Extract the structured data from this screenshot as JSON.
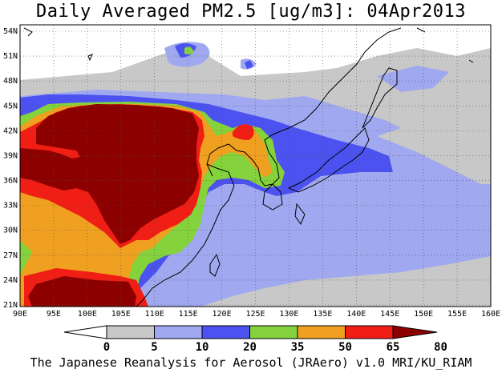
{
  "title": "Daily Averaged PM2.5 [ug/m3]: 04Apr2013",
  "footer": "The Japanese Reanalysis for Aerosol (JRAero) v1.0 MRI/KU_RIAM",
  "lat_labels": [
    "54N",
    "51N",
    "48N",
    "45N",
    "42N",
    "39N",
    "36N",
    "33N",
    "30N",
    "27N",
    "24N",
    "21N"
  ],
  "lon_labels": [
    "90E",
    "95E",
    "100E",
    "105E",
    "110E",
    "115E",
    "120E",
    "125E",
    "130E",
    "135E",
    "140E",
    "145E",
    "150E",
    "155E",
    "160E"
  ],
  "colorbar": {
    "levels": [
      "0",
      "5",
      "10",
      "20",
      "35",
      "50",
      "65",
      "80"
    ],
    "colors": [
      "#ffffff",
      "#c8c8c8",
      "#a0a8f0",
      "#4b52f0",
      "#84d23c",
      "#f0a020",
      "#f01e14",
      "#8c0000"
    ]
  },
  "colors": {
    "white": "#ffffff",
    "gray": "#c8c8c8",
    "lightblue": "#a0a8f0",
    "blue": "#4b52f0",
    "green": "#84d23c",
    "orange": "#f0a020",
    "red": "#f01e14",
    "darkred": "#8c0000"
  }
}
